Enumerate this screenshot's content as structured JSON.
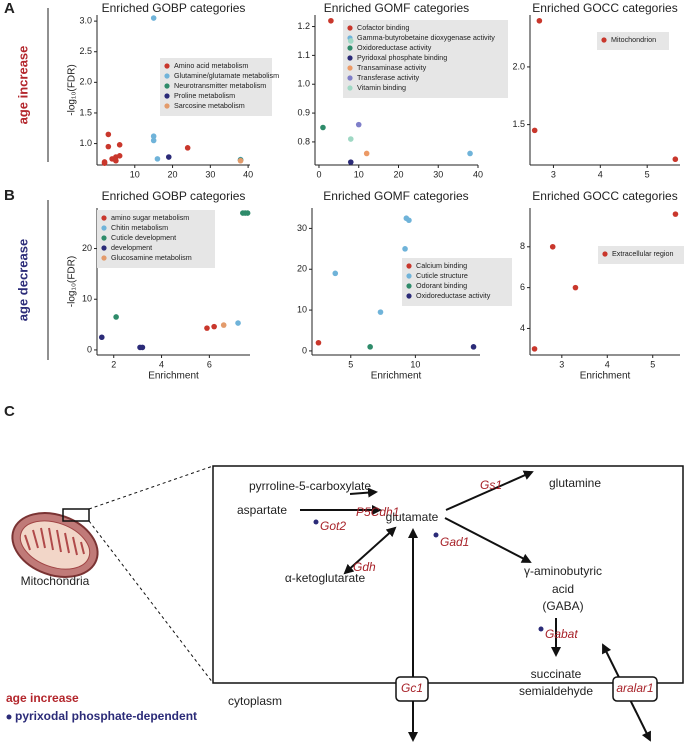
{
  "panel_labels": [
    "A",
    "B",
    "C"
  ],
  "row_labels": [
    "age increase",
    "age decrease"
  ],
  "chart_data": [
    {
      "type": "scatter",
      "title": "Enriched GOBP categories",
      "y_label": "-log₁₀(FDR)",
      "xlim": [
        0,
        40.5
      ],
      "xticks": [
        10,
        20,
        30,
        40
      ],
      "ylim": [
        0.65,
        3.1
      ],
      "yticks": [
        {
          "value": 1,
          "label": "1.0"
        },
        1.5,
        {
          "value": 2,
          "label": "2.0"
        },
        2.5,
        {
          "value": 3,
          "label": "3.0"
        }
      ],
      "series": [
        {
          "name": "Amino acid metabolism",
          "color": "#c9372c",
          "x": [
            2,
            3,
            3,
            4,
            5,
            5,
            6,
            6,
            2,
            24
          ],
          "y": [
            0.7,
            0.95,
            1.15,
            0.75,
            0.78,
            0.72,
            0.98,
            0.8,
            0.68,
            0.93
          ]
        },
        {
          "name": "Glutamine/glutamate metabolism",
          "color": "#6fb3d9",
          "x": [
            15,
            15,
            15,
            16,
            38
          ],
          "y": [
            3.05,
            1.12,
            1.05,
            0.75,
            0.74
          ]
        },
        {
          "name": "Neurotransmitter metabolism",
          "color": "#2e8b6a",
          "x": [
            38
          ],
          "y": [
            0.73
          ]
        },
        {
          "name": "Proline metabolism",
          "color": "#2b2b78",
          "x": [
            19
          ],
          "y": [
            0.78
          ]
        },
        {
          "name": "Sarcosine metabolism",
          "color": "#e39b6b",
          "x": [
            38
          ],
          "y": [
            0.72
          ]
        }
      ]
    },
    {
      "type": "scatter",
      "title": "Enriched GOMF categories",
      "xlim": [
        -1,
        40
      ],
      "xticks": [
        0,
        10,
        20,
        30,
        40
      ],
      "ylim": [
        0.72,
        1.24
      ],
      "yticks": [
        0.8,
        0.9,
        {
          "value": 1,
          "label": "1.0"
        },
        1.1,
        1.2
      ],
      "series": [
        {
          "name": "Cofactor binding",
          "color": "#c9372c",
          "x": [
            3
          ],
          "y": [
            1.22
          ]
        },
        {
          "name": "Gamma-butyrobetaine dioxygenase activity",
          "color": "#6fb3d9",
          "x": [
            38
          ],
          "y": [
            0.76
          ]
        },
        {
          "name": "Oxidoreductase activity",
          "color": "#2e8b6a",
          "x": [
            1
          ],
          "y": [
            0.85
          ]
        },
        {
          "name": "Pyridoxal phosphate binding",
          "color": "#2b2b78",
          "x": [
            8
          ],
          "y": [
            0.73
          ]
        },
        {
          "name": "Transaminase activity",
          "color": "#ec9a66",
          "x": [
            12
          ],
          "y": [
            0.76
          ]
        },
        {
          "name": "Transferase activity",
          "color": "#7f7fc9",
          "x": [
            10
          ],
          "y": [
            0.86
          ]
        },
        {
          "name": "Vitamin binding",
          "color": "#9fd8c4",
          "x": [
            8,
            8
          ],
          "y": [
            1.15,
            0.81
          ]
        }
      ]
    },
    {
      "type": "scatter",
      "title": "Enriched GOCC categories",
      "xlim": [
        2.5,
        5.7
      ],
      "xticks": [
        3,
        4,
        5
      ],
      "ylim": [
        1.15,
        2.45
      ],
      "yticks": [
        1.5,
        {
          "value": 2,
          "label": "2.0"
        }
      ],
      "series": [
        {
          "name": "Mitochondrion",
          "color": "#c9372c",
          "x": [
            2.7,
            2.6,
            5.6
          ],
          "y": [
            2.4,
            1.45,
            1.2
          ]
        }
      ]
    },
    {
      "type": "scatter",
      "title": "Enriched GOBP categories",
      "y_label": "-log₁₀(FDR)",
      "x_label": "Enrichment",
      "xlim": [
        1.3,
        7.7
      ],
      "xticks": [
        2,
        4,
        6
      ],
      "ylim": [
        -1,
        28
      ],
      "yticks": [
        0,
        10,
        20
      ],
      "series": [
        {
          "name": "amino sugar metabolism",
          "color": "#c9372c",
          "x": [
            5.9,
            6.2
          ],
          "y": [
            4.3,
            4.6
          ]
        },
        {
          "name": "Chitin metabolism",
          "color": "#6fb3d9",
          "x": [
            7.2
          ],
          "y": [
            5.3
          ]
        },
        {
          "name": "Cuticle development",
          "color": "#2e8b6a",
          "x": [
            2.1,
            7.4,
            7.5,
            7.6
          ],
          "y": [
            6.5,
            27,
            27,
            27
          ]
        },
        {
          "name": "development",
          "color": "#2b2b78",
          "x": [
            1.5,
            3.1,
            3.2
          ],
          "y": [
            2.5,
            0.5,
            0.5
          ]
        },
        {
          "name": "Glucosamine metabolism",
          "color": "#e39b6b",
          "x": [
            6.6
          ],
          "y": [
            4.9
          ]
        }
      ]
    },
    {
      "type": "scatter",
      "title": "Enriched GOMF categories",
      "x_label": "Enrichment",
      "xlim": [
        2,
        15
      ],
      "xticks": [
        5,
        10
      ],
      "ylim": [
        -1,
        35
      ],
      "yticks": [
        0,
        10,
        20,
        30
      ],
      "series": [
        {
          "name": "Calcium binding",
          "color": "#c9372c",
          "x": [
            2.5
          ],
          "y": [
            2
          ]
        },
        {
          "name": "Cuticle structure",
          "color": "#6fb3d9",
          "x": [
            3.8,
            7.3,
            9.2,
            9.3,
            9.5
          ],
          "y": [
            19,
            9.5,
            25,
            32.5,
            32
          ]
        },
        {
          "name": "Odorant binding",
          "color": "#2e8b6a",
          "x": [
            6.5
          ],
          "y": [
            1
          ]
        },
        {
          "name": "Oxidoreductase activity",
          "color": "#2b2b78",
          "x": [
            14.5
          ],
          "y": [
            1
          ]
        }
      ]
    },
    {
      "type": "scatter",
      "title": "Enriched GOCC categories",
      "x_label": "Enrichment",
      "xlim": [
        2.3,
        5.6
      ],
      "xticks": [
        3,
        4,
        5
      ],
      "ylim": [
        2.7,
        9.9
      ],
      "yticks": [
        4,
        6,
        8
      ],
      "series": [
        {
          "name": "Extracellular region",
          "color": "#c9372c",
          "x": [
            2.4,
            2.8,
            3.3,
            5.5
          ],
          "y": [
            3,
            8,
            6,
            9.6
          ]
        }
      ]
    }
  ],
  "diagram": {
    "p5c": "pyrroline-5-carboxylate",
    "p5cdh1": "P5Cdh1",
    "gs1": "Gs1",
    "glutamine": "glutamine",
    "aspartate": "aspartate",
    "got2": "Got2",
    "glutamate": "glutamate",
    "gdh": "Gdh",
    "gad1": "Gad1",
    "akg": "α-ketoglutarate",
    "gaba": [
      "γ-aminobutyric",
      "acid",
      "(GABA)"
    ],
    "gabat": "Gabat",
    "ssa": [
      "succinate",
      "semialdehyde"
    ],
    "gc1": "Gc1",
    "aralar1": "aralar1",
    "cytoplasm": "cytoplasm",
    "mitochondria": "Mitochondria",
    "legend": [
      "age increase",
      "pyrixodal phosphate-dependent"
    ]
  }
}
